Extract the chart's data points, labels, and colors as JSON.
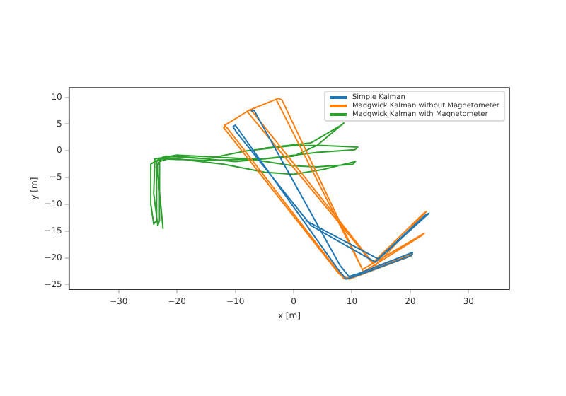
{
  "chart_data": {
    "type": "line",
    "xlabel": "x [m]",
    "ylabel": "y [m]",
    "xlim": [
      -38.5,
      37
    ],
    "ylim": [
      -25.9,
      11.8
    ],
    "xticks": [
      -30,
      -20,
      -10,
      0,
      10,
      20,
      30
    ],
    "yticks": [
      -25,
      -20,
      -15,
      -10,
      -5,
      0,
      5,
      10
    ],
    "grid": false,
    "legend": "top right",
    "marker": "none",
    "series": [
      {
        "name": "Simple Kalman",
        "color": "#1f77b4",
        "x": [
          -7.3,
          -6.8,
          -6,
          8,
          9.5,
          11,
          20.4,
          20.2,
          11,
          9,
          7.5,
          -10,
          -10.4,
          -9.8,
          3,
          14,
          23.2,
          22.6,
          14.5,
          2
        ],
        "values": [
          7.4,
          7.6,
          6,
          -21.5,
          -23.5,
          -23,
          -19,
          -19.6,
          -23.3,
          -24,
          -22,
          4.8,
          4.5,
          3.5,
          -14,
          -20.8,
          -11.7,
          -12,
          -20.2,
          -13
        ]
      },
      {
        "name": "Madgwick Kalman without Magnetometer",
        "color": "#ff7f0e",
        "x": [
          -11.9,
          -11.5,
          8.6,
          10,
          20.4,
          20,
          9.5,
          7.8,
          -12,
          -11.9,
          -7.6,
          -7.2,
          14,
          22.8,
          22.2,
          13.5,
          -8,
          -7.6,
          -2.6,
          -2,
          11.8,
          22.4,
          22,
          12,
          -3,
          -2.6
        ],
        "values": [
          4.7,
          4.4,
          -23.9,
          -23.5,
          -19.3,
          -19.7,
          -24,
          -23,
          4.3,
          4.7,
          7.6,
          7.5,
          -21.5,
          -11.3,
          -11.8,
          -21,
          7.4,
          7.6,
          9.8,
          9.5,
          -22.2,
          -15.4,
          -15.8,
          -22.6,
          9.6,
          9.8
        ]
      },
      {
        "name": "Madgwick Kalman with Magnetometer",
        "color": "#2ca02c",
        "x": [
          -22.4,
          -22.8,
          -23.5,
          -22,
          -15,
          -8,
          0,
          5,
          11,
          10.5,
          4,
          -5,
          -15,
          -23,
          -24.5,
          -24.5,
          -24,
          -23.5,
          -23.5,
          -22.5,
          -12,
          -5,
          0,
          5,
          10.6,
          10.2,
          4,
          0,
          -8,
          -20,
          -23.8,
          -24,
          -23.3,
          -23,
          -23,
          -20,
          -10,
          0,
          4,
          8.6,
          8.2,
          3,
          -5
        ],
        "values": [
          -14.6,
          -10,
          -2,
          -1,
          -1.5,
          0,
          1,
          1,
          0.7,
          0.2,
          -0.3,
          -1.5,
          -1.8,
          -1.5,
          -2.5,
          -10,
          -13.7,
          -13,
          -3,
          -1.2,
          -2.5,
          -4,
          -4.4,
          -3.5,
          -2,
          -2.5,
          -3,
          -2.8,
          -1.5,
          -0.8,
          -1.5,
          -8,
          -14,
          -13,
          -2,
          -1,
          -2,
          -1,
          1,
          5.2,
          4.8,
          1.5,
          0.5
        ]
      }
    ]
  }
}
